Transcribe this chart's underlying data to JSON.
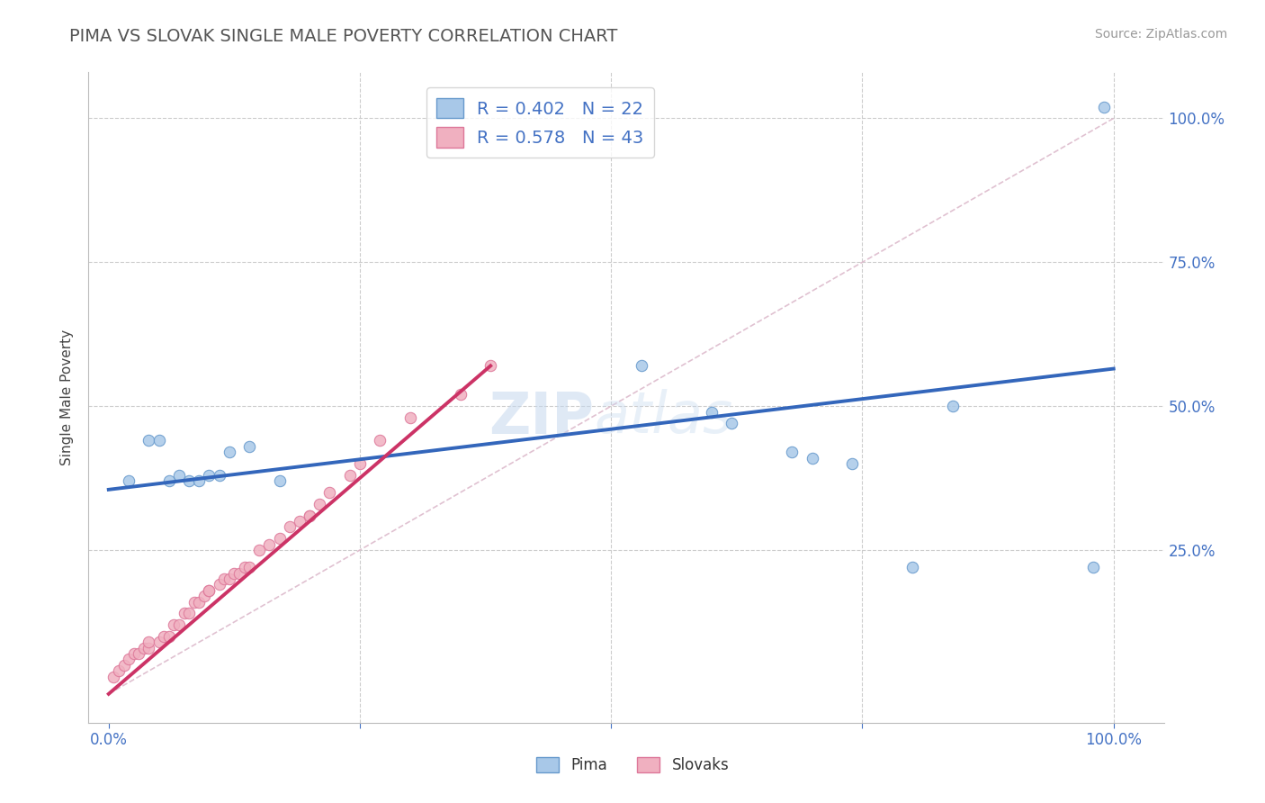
{
  "title": "PIMA VS SLOVAK SINGLE MALE POVERTY CORRELATION CHART",
  "source": "Source: ZipAtlas.com",
  "ylabel": "Single Male Poverty",
  "xlim": [
    -0.02,
    1.05
  ],
  "ylim": [
    -0.05,
    1.08
  ],
  "pima_color": "#a8c8e8",
  "pima_edge_color": "#6699cc",
  "slovak_color": "#f0b0c0",
  "slovak_edge_color": "#dd7799",
  "pima_R": 0.402,
  "pima_N": 22,
  "slovak_R": 0.578,
  "slovak_N": 43,
  "pima_scatter_x": [
    0.02,
    0.04,
    0.05,
    0.06,
    0.07,
    0.08,
    0.09,
    0.1,
    0.11,
    0.12,
    0.14,
    0.17,
    0.53,
    0.62,
    0.68,
    0.7,
    0.74,
    0.8,
    0.98,
    0.99,
    0.6,
    0.84
  ],
  "pima_scatter_y": [
    0.37,
    0.44,
    0.44,
    0.37,
    0.38,
    0.37,
    0.37,
    0.38,
    0.38,
    0.42,
    0.43,
    0.37,
    0.57,
    0.47,
    0.42,
    0.41,
    0.4,
    0.22,
    0.22,
    1.02,
    0.49,
    0.5
  ],
  "slovak_scatter_x": [
    0.005,
    0.01,
    0.015,
    0.02,
    0.025,
    0.03,
    0.035,
    0.04,
    0.04,
    0.05,
    0.055,
    0.06,
    0.065,
    0.07,
    0.075,
    0.08,
    0.085,
    0.09,
    0.095,
    0.1,
    0.1,
    0.11,
    0.115,
    0.12,
    0.125,
    0.13,
    0.135,
    0.14,
    0.15,
    0.16,
    0.17,
    0.18,
    0.19,
    0.2,
    0.2,
    0.21,
    0.22,
    0.24,
    0.25,
    0.27,
    0.3,
    0.35,
    0.38
  ],
  "slovak_scatter_y": [
    0.03,
    0.04,
    0.05,
    0.06,
    0.07,
    0.07,
    0.08,
    0.08,
    0.09,
    0.09,
    0.1,
    0.1,
    0.12,
    0.12,
    0.14,
    0.14,
    0.16,
    0.16,
    0.17,
    0.18,
    0.18,
    0.19,
    0.2,
    0.2,
    0.21,
    0.21,
    0.22,
    0.22,
    0.25,
    0.26,
    0.27,
    0.29,
    0.3,
    0.31,
    0.31,
    0.33,
    0.35,
    0.38,
    0.4,
    0.44,
    0.48,
    0.52,
    0.57
  ],
  "pima_line_x0": 0.0,
  "pima_line_y0": 0.355,
  "pima_line_x1": 1.0,
  "pima_line_y1": 0.565,
  "slovak_line_x0": 0.0,
  "slovak_line_y0": 0.0,
  "slovak_line_x1": 0.38,
  "slovak_line_y1": 0.57,
  "pima_line_color": "#3366bb",
  "slovak_line_color": "#cc3366",
  "diagonal_color": "#ddbbcc",
  "watermark_zip": "ZIP",
  "watermark_atlas": "atlas",
  "background_color": "#ffffff",
  "grid_color": "#cccccc",
  "tick_color": "#4472c4",
  "title_color": "#555555"
}
